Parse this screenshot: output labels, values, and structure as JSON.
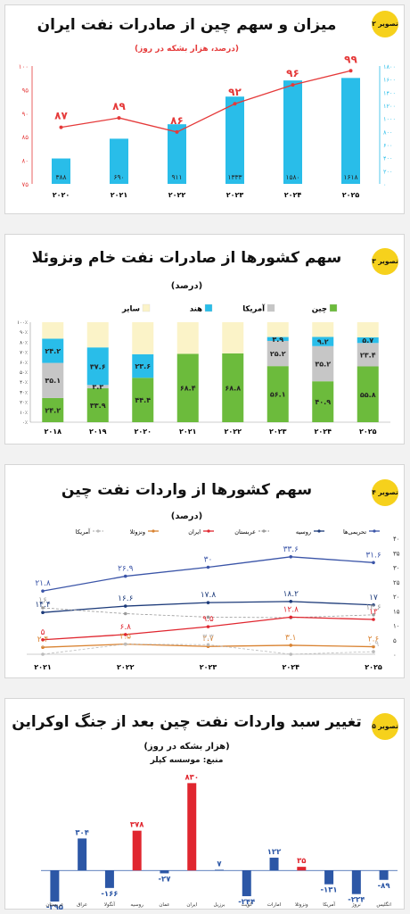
{
  "chart_data": [
    {
      "type": "bar",
      "badge": "تصویر ۲",
      "title": "میزان و سهم چین از صادرات نفت ایران",
      "subtitle": "(درصد، هزار بشکه در روز)",
      "categories": [
        "۲۰۲۰",
        "۲۰۲۱",
        "۲۰۲۲",
        "۲۰۲۳",
        "۲۰۲۴",
        "۲۰۲۵"
      ],
      "series": [
        {
          "values": [
            388,
            690,
            911,
            1333,
            1580,
            1618
          ],
          "labels": [
            "۳۸۸",
            "۶۹۰",
            "۹۱۱",
            "۱۳۳۳",
            "۱۵۸۰",
            "۱۶۱۸"
          ],
          "color": "#29bde9",
          "kind": "bar",
          "axis": "right"
        },
        {
          "values": [
            87,
            89,
            86,
            92,
            96,
            99
          ],
          "labels": [
            "۸۷",
            "۸۹",
            "۸۶",
            "۹۲",
            "۹۶",
            "۹۹"
          ],
          "color": "#e53a3a",
          "kind": "line",
          "axis": "left"
        }
      ],
      "y_left": {
        "ylim": [
          75,
          100
        ],
        "ticks": [
          "۱۰۰",
          "۹۵",
          "۹۰",
          "۸۵",
          "۸۰",
          "۷۵"
        ]
      },
      "y_right": {
        "ylim": [
          0,
          1800
        ],
        "ticks": [
          "۱۸۰۰",
          "۱۶۰۰",
          "۱۴۰۰",
          "۱۲۰۰",
          "۱۰۰۰",
          "۸۰۰",
          "۶۰۰",
          "۴۰۰",
          "۲۰۰",
          "۰"
        ]
      }
    },
    {
      "type": "bar",
      "stacked": true,
      "badge": "تصویر ۳",
      "title": "سهم کشورها از صادرات نفت خام ونزوئلا",
      "subtitle": "(درصد)",
      "legend": [
        {
          "name": "چین",
          "color": "#6cbb3c"
        },
        {
          "name": "آمریکا",
          "color": "#c6c6c6"
        },
        {
          "name": "هند",
          "color": "#29bde9"
        },
        {
          "name": "سایر",
          "color": "#fbf3c8"
        }
      ],
      "categories": [
        "۲۰۱۸",
        "۲۰۱۹",
        "۲۰۲۰",
        "۲۰۲۱",
        "۲۰۲۲",
        "۲۰۲۳",
        "۲۰۲۴",
        "۲۰۲۵"
      ],
      "series": [
        {
          "name": "چین",
          "values": [
            24.2,
            33.9,
            44.4,
            68.4,
            68.8,
            56.1,
            40.9,
            55.8
          ],
          "labels": [
            "۲۴.۲",
            "۳۳.۹",
            "۴۴.۴",
            "۶۸.۴",
            "۶۸.۸",
            "۵۶.۱",
            "۴۰.۹",
            "۵۵.۸"
          ]
        },
        {
          "name": "آمریکا",
          "values": [
            35.1,
            3.3,
            0,
            0,
            0,
            25.2,
            35.2,
            23.4
          ],
          "labels": [
            "۳۵.۱",
            "۳.۳",
            "",
            "",
            "",
            "۲۵.۲",
            "۳۵.۲",
            "۲۳.۴"
          ]
        },
        {
          "name": "هند",
          "values": [
            24.2,
            37.6,
            23.6,
            0,
            0,
            3.9,
            9.2,
            5.7
          ],
          "labels": [
            "۲۴.۲",
            "۳۷.۶",
            "۲۳.۶",
            "",
            "",
            "۳.۹",
            "۹.۲",
            "۵.۷"
          ]
        },
        {
          "name": "سایر",
          "values": [
            16.5,
            25.2,
            32.0,
            31.6,
            31.2,
            14.8,
            14.7,
            15.1
          ],
          "labels": [
            "",
            "",
            "",
            "",
            "",
            "",
            "",
            ""
          ]
        }
      ],
      "ylim": [
        0,
        100
      ],
      "y_ticks": [
        "۱۰۰٪",
        "۹۰٪",
        "۸۰٪",
        "۷۰٪",
        "۶۰٪",
        "۵۰٪",
        "۴۰٪",
        "۳۰٪",
        "۲۰٪",
        "۱۰٪",
        "۰٪"
      ]
    },
    {
      "type": "line",
      "badge": "تصویر ۴",
      "title": "سهم کشورها از واردات نفت چین",
      "subtitle": "(درصد)",
      "categories": [
        "۲۰۲۱",
        "۲۰۲۲",
        "۲۰۲۳",
        "۲۰۲۴",
        "۲۰۲۵"
      ],
      "series": [
        {
          "name": "تحریمی‌ها",
          "color": "#3b55a8",
          "values": [
            21.8,
            26.9,
            30,
            33.6,
            31.6
          ],
          "labels": [
            "۲۱.۸",
            "۲۶.۹",
            "۳۰",
            "۳۳.۶",
            "۳۱.۶"
          ]
        },
        {
          "name": "روسیه",
          "color": "#1d3b7a",
          "values": [
            14.4,
            16.6,
            17.8,
            18.2,
            17
          ],
          "labels": [
            "۱۴.۴",
            "۱۶.۶",
            "۱۷.۸",
            "۱۸.۲",
            "۱۷"
          ]
        },
        {
          "name": "عربستان",
          "color": "#9a9a9a",
          "dashed": true,
          "values": [
            16,
            14,
            12.8,
            12.6,
            13.6
          ],
          "labels": [
            "۱۶",
            "",
            "",
            "",
            "۱۳.۶"
          ]
        },
        {
          "name": "ایران",
          "color": "#e0262f",
          "values": [
            5,
            6.8,
            9.5,
            12.8,
            12
          ],
          "labels": [
            "۵",
            "۶.۸",
            "۹.۵",
            "۱۲.۸",
            "۱۲"
          ]
        },
        {
          "name": "ونزوئلا",
          "color": "#d98230",
          "values": [
            2.4,
            3.5,
            2.7,
            3.1,
            2.6
          ],
          "labels": [
            "۲.۴",
            "۳.۵",
            "۲.۷",
            "۳.۱",
            "۲.۶"
          ]
        },
        {
          "name": "آمریکا",
          "color": "#bbbbbb",
          "dashed": true,
          "values": [
            0,
            3.5,
            3.3,
            0,
            0.9
          ],
          "labels": [
            "۰",
            "",
            "۳.۳",
            "",
            "۰.۹"
          ]
        }
      ],
      "ylim": [
        0,
        40
      ],
      "y_ticks": [
        "۴۰",
        "۳۵",
        "۳۰",
        "۲۵",
        "۲۰",
        "۱۵",
        "۱۰",
        "۵",
        "۰"
      ]
    },
    {
      "type": "bar",
      "badge": "تصویر ۵",
      "title": "تغییر سبد واردات نفت چین بعد از جنگ اوکراین",
      "subtitle": "(هزار بشکه در روز)",
      "source": "منبع: موسسه کپلر",
      "categories": [
        "عربستان",
        "عراق",
        "آنگولا",
        "روسیه",
        "عمان",
        "ایران",
        "برزیل",
        "کویت",
        "امارات",
        "ونزوئلا",
        "آمریکا",
        "نروژ",
        "انگلیس"
      ],
      "values": [
        -295,
        304,
        -166,
        378,
        -27,
        830,
        7,
        -244,
        122,
        35,
        -131,
        -224,
        -89
      ],
      "labels": [
        "-۲۹۵",
        "۳۰۴",
        "-۱۶۶",
        "۳۷۸",
        "-۲۷",
        "۸۳۰",
        "۷",
        "-۲۴۴",
        "۱۲۲",
        "۳۵",
        "-۱۳۱",
        "-۲۲۴",
        "-۸۹"
      ],
      "colors": [
        "#2c57a6",
        "#2c57a6",
        "#2c57a6",
        "#e0262f",
        "#2c57a6",
        "#e0262f",
        "#2c57a6",
        "#2c57a6",
        "#2c57a6",
        "#e0262f",
        "#2c57a6",
        "#2c57a6",
        "#2c57a6"
      ],
      "ylim": [
        -320,
        850
      ]
    }
  ]
}
